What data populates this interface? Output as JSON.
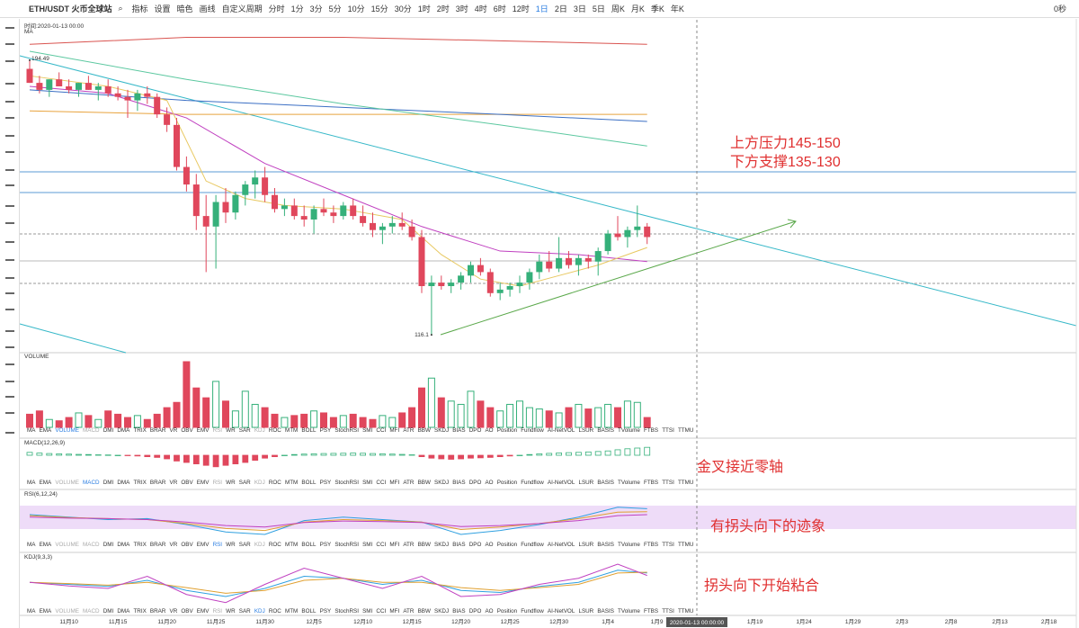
{
  "toolbar": {
    "symbol": "ETH/USDT 火币全球站",
    "tools": [
      "指标",
      "设置",
      "暗色",
      "画线"
    ],
    "custom": "自定义周期",
    "periods": [
      "分时",
      "1分",
      "3分",
      "5分",
      "10分",
      "15分",
      "30分",
      "1时",
      "2时",
      "3时",
      "4时",
      "6时",
      "12时",
      "1日",
      "2日",
      "3日",
      "5日",
      "周K",
      "月K",
      "季K",
      "年K"
    ],
    "active_period": 13,
    "right": "0秒"
  },
  "indicator_tabs": {
    "items": [
      "MA",
      "EMA",
      "VOLUME",
      "MACD",
      "DMI",
      "DMA",
      "TRIX",
      "BRAR",
      "VR",
      "OBV",
      "EMV",
      "RSI",
      "WR",
      "SAR",
      "KDJ",
      "ROC",
      "MTM",
      "BOLL",
      "PSY",
      "StochRSI",
      "SMI",
      "CCI",
      "MFI",
      "ATR",
      "BBW",
      "SKDJ",
      "BIAS",
      "DPO",
      "AO",
      "Position",
      "Fundflow",
      "AI-NetVOL",
      "LSUR",
      "BASIS",
      "TVolume",
      "FTBS",
      "TTSI",
      "TTMU"
    ],
    "active_rows": [
      2,
      3,
      11,
      14
    ]
  },
  "chart": {
    "time_label": "时间:2020-01-13 00:00",
    "main_label": "MA",
    "up_color": "#35b07a",
    "down_color": "#e0475c",
    "ylim": [
      111,
      206
    ],
    "candles": [
      [
        192,
        194.49,
        188,
        188
      ],
      [
        188,
        190,
        185,
        186
      ],
      [
        186,
        189,
        184,
        189
      ],
      [
        189,
        191,
        187,
        187
      ],
      [
        187,
        189,
        185,
        186
      ],
      [
        186,
        188,
        184,
        188
      ],
      [
        188,
        190,
        186,
        186
      ],
      [
        186,
        188,
        183,
        187
      ],
      [
        187,
        189,
        184,
        185
      ],
      [
        185,
        187,
        183,
        184
      ],
      [
        184,
        186,
        178,
        183
      ],
      [
        183,
        186,
        180,
        185
      ],
      [
        185,
        187,
        182,
        184
      ],
      [
        184,
        185,
        178,
        179
      ],
      [
        179,
        181,
        174,
        176
      ],
      [
        176,
        178,
        163,
        164
      ],
      [
        164,
        167,
        157,
        159
      ],
      [
        159,
        162,
        146,
        150
      ],
      [
        150,
        156,
        134,
        147
      ],
      [
        147,
        156,
        135,
        154
      ],
      [
        154,
        158,
        148,
        151
      ],
      [
        151,
        157,
        149,
        156
      ],
      [
        156,
        160,
        153,
        159
      ],
      [
        159,
        163,
        155,
        161
      ],
      [
        161,
        164,
        154,
        156
      ],
      [
        156,
        158,
        151,
        152
      ],
      [
        152,
        155,
        150,
        153
      ],
      [
        153,
        155,
        149,
        150
      ],
      [
        150,
        153,
        147,
        149
      ],
      [
        149,
        153,
        145,
        152
      ],
      [
        152,
        155,
        150,
        151
      ],
      [
        151,
        153,
        148,
        150
      ],
      [
        150,
        154,
        149,
        153
      ],
      [
        153,
        155,
        149,
        150
      ],
      [
        150,
        153,
        147,
        148
      ],
      [
        148,
        151,
        144,
        146
      ],
      [
        146,
        148,
        142,
        147
      ],
      [
        147,
        150,
        145,
        148
      ],
      [
        148,
        151,
        146,
        147
      ],
      [
        147,
        149,
        143,
        144
      ],
      [
        144,
        146,
        128,
        130
      ],
      [
        130,
        133,
        116.1,
        131
      ],
      [
        131,
        133,
        129,
        130
      ],
      [
        130,
        132,
        128,
        131
      ],
      [
        131,
        134,
        129,
        133
      ],
      [
        133,
        137,
        131,
        136
      ],
      [
        136,
        138,
        133,
        134
      ],
      [
        134,
        135,
        127,
        128
      ],
      [
        128,
        131,
        126,
        129
      ],
      [
        129,
        131,
        127,
        130
      ],
      [
        130,
        133,
        128,
        131
      ],
      [
        131,
        135,
        129,
        134
      ],
      [
        134,
        139,
        132,
        137
      ],
      [
        137,
        140,
        134,
        135
      ],
      [
        135,
        144,
        134,
        138
      ],
      [
        138,
        140,
        135,
        136
      ],
      [
        136,
        139,
        133,
        138
      ],
      [
        138,
        139,
        135,
        137
      ],
      [
        137,
        141,
        133,
        140
      ],
      [
        140,
        146,
        139,
        145
      ],
      [
        145,
        150,
        143,
        144
      ],
      [
        144,
        147,
        141,
        146
      ],
      [
        146,
        153,
        144,
        147
      ],
      [
        147,
        148,
        142,
        144
      ]
    ],
    "ma_lines": [
      {
        "color": "#d9534f",
        "x": [
          0,
          16,
          32,
          48,
          63
        ],
        "values": [
          199,
          201,
          201,
          200,
          199
        ]
      },
      {
        "color": "#e8a33d",
        "x": [
          0,
          16,
          32,
          48,
          63
        ],
        "values": [
          180,
          179,
          179,
          179,
          179
        ]
      },
      {
        "color": "#3b6fc4",
        "x": [
          0,
          16,
          32,
          48,
          63
        ],
        "values": [
          186,
          183,
          181,
          179,
          177
        ]
      },
      {
        "color": "#5cc8a0",
        "x": [
          0,
          16,
          32,
          48,
          63
        ],
        "values": [
          197,
          189,
          182,
          176,
          170
        ]
      },
      {
        "color": "#c040c0",
        "x": [
          0,
          8,
          16,
          24,
          32,
          40,
          48,
          56,
          63
        ],
        "values": [
          187,
          185,
          178,
          165,
          156,
          147,
          140,
          139,
          137
        ]
      },
      {
        "color": "#e8c860",
        "x": [
          0,
          8,
          14,
          18,
          22,
          26,
          32,
          38,
          42,
          46,
          50,
          54,
          58,
          63
        ],
        "values": [
          190,
          187,
          183,
          160,
          155,
          153,
          152,
          149,
          139,
          132,
          130,
          133,
          136,
          141
        ]
      }
    ],
    "price_labels": [
      194.49,
      116.1
    ],
    "volume_label": "VOLUME",
    "volume_ylim": [
      0,
      100
    ],
    "volume": [
      20,
      25,
      12,
      10,
      15,
      22,
      18,
      12,
      25,
      20,
      15,
      18,
      12,
      20,
      30,
      38,
      100,
      60,
      45,
      70,
      40,
      25,
      55,
      35,
      30,
      20,
      15,
      18,
      20,
      25,
      22,
      15,
      18,
      20,
      15,
      12,
      18,
      15,
      22,
      30,
      60,
      75,
      45,
      40,
      35,
      55,
      40,
      30,
      25,
      35,
      40,
      30,
      28,
      25,
      22,
      30,
      35,
      28,
      30,
      35,
      30,
      40,
      38,
      15
    ],
    "macd_label": "MACD(12,26,9)",
    "macd_ylim": [
      -10,
      10
    ],
    "macd": [
      2,
      1.5,
      1.2,
      1,
      0.8,
      0.6,
      0.5,
      0.3,
      0.2,
      0,
      -0.3,
      -0.5,
      -1,
      -1.5,
      -2.5,
      -4,
      -5,
      -6,
      -7,
      -8,
      -7,
      -6,
      -5,
      -3.5,
      -2,
      -1,
      0,
      0.5,
      0.8,
      1,
      1.2,
      1.3,
      1.4,
      1.5,
      1.4,
      1.2,
      1,
      0.8,
      0.6,
      0.3,
      -1,
      -2,
      -2.5,
      -2.8,
      -2.5,
      -2,
      -1.8,
      -1.5,
      -1,
      -0.5,
      0,
      0.5,
      1,
      1.3,
      1.6,
      1.8,
      2,
      2.3,
      2.6,
      3,
      3.8,
      4.5,
      5,
      5.5
    ],
    "rsi_label": "RSI(6,12,24)",
    "rsi_ylim": [
      0,
      100
    ],
    "osc_x": [
      0,
      4,
      8,
      12,
      16,
      20,
      24,
      28,
      32,
      36,
      40,
      44,
      48,
      52,
      56,
      60,
      63
    ],
    "rsi": [
      {
        "color": "#2fa0e0",
        "values": [
          60,
          55,
          50,
          52,
          40,
          25,
          20,
          48,
          55,
          50,
          45,
          20,
          28,
          40,
          55,
          75,
          72
        ]
      },
      {
        "color": "#e0a030",
        "values": [
          58,
          54,
          52,
          50,
          42,
          32,
          28,
          45,
          50,
          48,
          45,
          30,
          35,
          42,
          52,
          65,
          66
        ]
      },
      {
        "color": "#c040c0",
        "values": [
          55,
          53,
          52,
          50,
          45,
          38,
          35,
          44,
          47,
          46,
          44,
          36,
          38,
          42,
          48,
          58,
          60
        ]
      }
    ],
    "kdj_label": "KDJ(9,3,3)",
    "kdj_ylim": [
      0,
      100
    ],
    "kdj": [
      {
        "color": "#2fa0e0",
        "values": [
          55,
          50,
          45,
          60,
          35,
          20,
          40,
          70,
          65,
          50,
          60,
          35,
          30,
          45,
          55,
          85,
          78
        ]
      },
      {
        "color": "#e0a030",
        "values": [
          55,
          52,
          48,
          55,
          42,
          28,
          35,
          60,
          65,
          55,
          55,
          42,
          35,
          42,
          50,
          78,
          80
        ]
      },
      {
        "color": "#c040c0",
        "values": [
          55,
          46,
          40,
          70,
          25,
          5,
          50,
          90,
          65,
          40,
          70,
          20,
          25,
          50,
          65,
          100,
          72
        ]
      }
    ],
    "dates": [
      "11月10",
      "11月15",
      "11月20",
      "11月25",
      "11月30",
      "12月5",
      "12月10",
      "12月15",
      "12月20",
      "12月25",
      "12月30",
      "1月4",
      "1月9"
    ],
    "cursor_date": "2020-01-13 00:00:00",
    "future_dates": [
      "1月19",
      "1月24",
      "1月29",
      "2月3",
      "2月8",
      "2月13",
      "2月18"
    ]
  },
  "annotations": [
    "上方压力145-150",
    "下方支撑135-130",
    "金叉接近零轴",
    "有拐头向下的迹象",
    "拐头向下开始粘合"
  ]
}
